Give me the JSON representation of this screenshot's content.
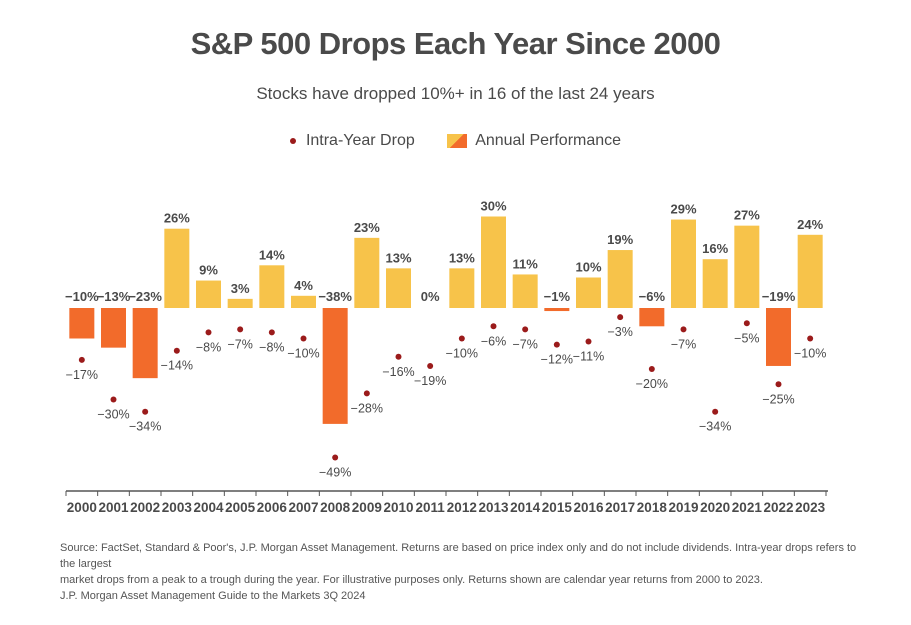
{
  "chart_data": {
    "type": "bar",
    "title": "S&P 500 Drops Each Year Since 2000",
    "subtitle": "Stocks have dropped 10%+ in 16 of the last 24 years",
    "legend": [
      {
        "label": "Intra-Year Drop",
        "marker": "dot"
      },
      {
        "label": "Annual Performance",
        "marker": "bar"
      }
    ],
    "categories": [
      "2000",
      "2001",
      "2002",
      "2003",
      "2004",
      "2005",
      "2006",
      "2007",
      "2008",
      "2009",
      "2010",
      "2011",
      "2012",
      "2013",
      "2014",
      "2015",
      "2016",
      "2017",
      "2018",
      "2019",
      "2020",
      "2021",
      "2022",
      "2023"
    ],
    "series": [
      {
        "name": "Annual Performance",
        "values": [
          -10,
          -13,
          -23,
          26,
          9,
          3,
          14,
          4,
          -38,
          23,
          13,
          0,
          13,
          30,
          11,
          -1,
          10,
          19,
          -6,
          29,
          16,
          27,
          -19,
          24
        ]
      },
      {
        "name": "Intra-Year Drop",
        "values": [
          -17,
          -30,
          -34,
          -14,
          -8,
          -7,
          -8,
          -10,
          -49,
          -28,
          -16,
          -19,
          -10,
          -6,
          -7,
          -12,
          -11,
          -3,
          -20,
          -7,
          -34,
          -5,
          -25,
          -10
        ]
      }
    ],
    "ylim": [
      -50,
      35
    ],
    "colors": {
      "positive": "#f7c34a",
      "negative": "#f26b2b",
      "dot": "#9b1b1b",
      "axis": "#555555"
    }
  },
  "source": {
    "line1": "Source: FactSet, Standard & Poor's, J.P. Morgan Asset Management. Returns are based on price index only and do not include dividends. Intra-year drops refers to the largest",
    "line2": "market drops from a peak to a trough during the year. For illustrative purposes only. Returns shown are calendar year returns from 2000 to 2023.",
    "line3": "J.P. Morgan Asset Management Guide to the Markets 3Q 2024"
  }
}
